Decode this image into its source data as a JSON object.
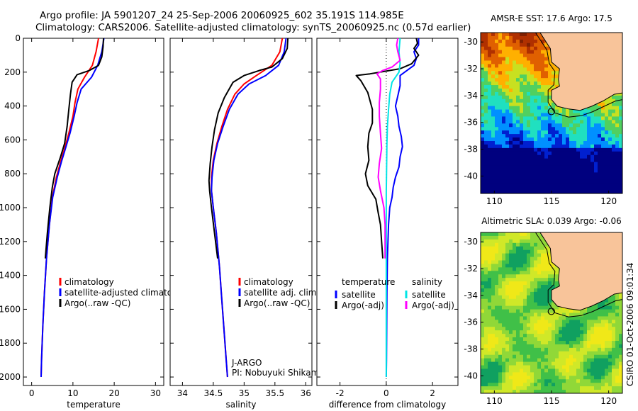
{
  "figure": {
    "title_line1": "Argo profile: JA 5901207_24 25-Sep-2006 20060925_602 35.191S 114.985E",
    "title_line2": "Climatology: CARS2006. Satellite-adjusted climatology: synTS_20060925.nc (0.57d earlier)",
    "credit": "CSIRO 01-Oct-2006 09:01:34",
    "colors": {
      "climatology": "#ff0000",
      "satellite": "#0000ff",
      "argo": "#000000",
      "sat_salinity": "#00e5e5",
      "argo_salinity": "#ff00ff",
      "land": "#f8c49a"
    }
  },
  "chart_data": [
    {
      "type": "line",
      "id": "temperature",
      "xlabel": "temperature",
      "xlim": [
        -2,
        32
      ],
      "ylim": [
        0,
        2050
      ],
      "y_reversed": true,
      "xticks": [
        0,
        10,
        20,
        30
      ],
      "yticks": [
        0,
        200,
        400,
        600,
        800,
        1000,
        1200,
        1400,
        1600,
        1800,
        2000
      ],
      "series": [
        {
          "name": "climatology",
          "color": "#ff0000",
          "points": [
            [
              16.2,
              0
            ],
            [
              15.6,
              80
            ],
            [
              14.7,
              160
            ],
            [
              12.8,
              230
            ],
            [
              11.2,
              300
            ],
            [
              10.5,
              380
            ],
            [
              10.0,
              460
            ],
            [
              9.0,
              560
            ],
            [
              8.0,
              650
            ],
            [
              7.0,
              730
            ],
            [
              6.0,
              820
            ],
            [
              5.0,
              940
            ],
            [
              4.3,
              1100
            ],
            [
              3.6,
              1300
            ],
            [
              3.1,
              1500
            ],
            [
              2.7,
              1700
            ],
            [
              2.4,
              1900
            ],
            [
              2.3,
              2000
            ]
          ]
        },
        {
          "name": "satellite-adjusted climatology",
          "color": "#0000ff",
          "points": [
            [
              17.5,
              0
            ],
            [
              17.0,
              80
            ],
            [
              16.0,
              160
            ],
            [
              14.5,
              230
            ],
            [
              12.0,
              300
            ],
            [
              11.0,
              380
            ],
            [
              10.3,
              460
            ],
            [
              9.3,
              560
            ],
            [
              8.2,
              650
            ],
            [
              7.2,
              730
            ],
            [
              6.2,
              820
            ],
            [
              5.1,
              940
            ],
            [
              4.3,
              1100
            ],
            [
              3.6,
              1300
            ],
            [
              3.1,
              1500
            ],
            [
              2.7,
              1700
            ],
            [
              2.4,
              1900
            ],
            [
              2.3,
              2000
            ]
          ]
        },
        {
          "name": "Argo(..raw -QC)",
          "color": "#000000",
          "points": [
            [
              17.4,
              0
            ],
            [
              17.3,
              50
            ],
            [
              17.0,
              110
            ],
            [
              16.2,
              160
            ],
            [
              14.0,
              190
            ],
            [
              11.0,
              215
            ],
            [
              9.8,
              260
            ],
            [
              9.4,
              330
            ],
            [
              9.0,
              420
            ],
            [
              8.6,
              520
            ],
            [
              8.0,
              620
            ],
            [
              7.0,
              700
            ],
            [
              5.6,
              800
            ],
            [
              5.0,
              880
            ],
            [
              4.4,
              1000
            ],
            [
              3.8,
              1150
            ],
            [
              3.3,
              1300
            ]
          ]
        }
      ],
      "legend": [
        "climatology",
        "satellite-adjusted climatology",
        "Argo(..raw -QC)"
      ]
    },
    {
      "type": "line",
      "id": "salinity",
      "xlabel": "salinity",
      "xlim": [
        33.8,
        36.1
      ],
      "ylim": [
        0,
        2050
      ],
      "y_reversed": true,
      "xticks": [
        34,
        34.5,
        35,
        35.5,
        36
      ],
      "series": [
        {
          "name": "climatology",
          "color": "#ff0000",
          "points": [
            [
              35.62,
              0
            ],
            [
              35.58,
              80
            ],
            [
              35.45,
              160
            ],
            [
              35.2,
              220
            ],
            [
              35.0,
              270
            ],
            [
              34.85,
              330
            ],
            [
              34.73,
              420
            ],
            [
              34.64,
              520
            ],
            [
              34.56,
              620
            ],
            [
              34.5,
              720
            ],
            [
              34.47,
              820
            ],
            [
              34.47,
              900
            ],
            [
              34.5,
              1000
            ],
            [
              34.55,
              1150
            ],
            [
              34.6,
              1350
            ],
            [
              34.64,
              1550
            ],
            [
              34.68,
              1750
            ],
            [
              34.71,
              1900
            ],
            [
              34.73,
              2000
            ]
          ]
        },
        {
          "name": "satellite adj. clim.",
          "color": "#0000ff",
          "points": [
            [
              35.68,
              0
            ],
            [
              35.65,
              80
            ],
            [
              35.56,
              160
            ],
            [
              35.35,
              220
            ],
            [
              35.08,
              270
            ],
            [
              34.9,
              330
            ],
            [
              34.76,
              420
            ],
            [
              34.66,
              520
            ],
            [
              34.57,
              620
            ],
            [
              34.51,
              720
            ],
            [
              34.48,
              820
            ],
            [
              34.47,
              900
            ],
            [
              34.5,
              1000
            ],
            [
              34.55,
              1150
            ],
            [
              34.6,
              1350
            ],
            [
              34.64,
              1550
            ],
            [
              34.68,
              1750
            ],
            [
              34.71,
              1900
            ],
            [
              34.73,
              2000
            ]
          ]
        },
        {
          "name": "Argo(..raw -QC)",
          "color": "#000000",
          "points": [
            [
              35.71,
              0
            ],
            [
              35.7,
              60
            ],
            [
              35.62,
              120
            ],
            [
              35.45,
              170
            ],
            [
              35.25,
              190
            ],
            [
              35.0,
              220
            ],
            [
              34.82,
              260
            ],
            [
              34.68,
              350
            ],
            [
              34.58,
              440
            ],
            [
              34.52,
              540
            ],
            [
              34.48,
              640
            ],
            [
              34.45,
              740
            ],
            [
              34.43,
              840
            ],
            [
              34.44,
              900
            ],
            [
              34.47,
              1000
            ],
            [
              34.52,
              1150
            ],
            [
              34.57,
              1300
            ]
          ]
        }
      ],
      "legend": [
        "climatology",
        "satellite adj. clim.",
        "Argo(..raw -QC)"
      ],
      "annotation_lines": [
        "J-ARGO",
        "PI: Nobuyuki Shikama"
      ]
    },
    {
      "type": "line",
      "id": "difference",
      "xlabel": "difference from climatology",
      "xlim": [
        -3,
        3.1
      ],
      "ylim": [
        0,
        2050
      ],
      "y_reversed": true,
      "xticks": [
        -2,
        0,
        2
      ],
      "zero_line": "dotted",
      "series": [
        {
          "name": "temperature satellite",
          "color": "#0000ff",
          "points": [
            [
              1.4,
              0
            ],
            [
              1.4,
              40
            ],
            [
              1.2,
              80
            ],
            [
              1.3,
              120
            ],
            [
              1.2,
              160
            ],
            [
              0.6,
              220
            ],
            [
              0.6,
              280
            ],
            [
              0.5,
              340
            ],
            [
              0.4,
              400
            ],
            [
              0.5,
              460
            ],
            [
              0.55,
              520
            ],
            [
              0.65,
              580
            ],
            [
              0.7,
              640
            ],
            [
              0.6,
              700
            ],
            [
              0.55,
              760
            ],
            [
              0.4,
              820
            ],
            [
              0.3,
              880
            ],
            [
              0.25,
              940
            ],
            [
              0.15,
              1000
            ],
            [
              0.1,
              1100
            ],
            [
              0.05,
              1300
            ],
            [
              0.03,
              1500
            ],
            [
              0.02,
              1700
            ],
            [
              0.01,
              1900
            ],
            [
              0,
              2000
            ]
          ]
        },
        {
          "name": "temperature Argo(-adj)",
          "color": "#000000",
          "points": [
            [
              1.3,
              0
            ],
            [
              1.35,
              30
            ],
            [
              1.2,
              60
            ],
            [
              1.4,
              100
            ],
            [
              1.1,
              150
            ],
            [
              0.6,
              180
            ],
            [
              -0.7,
              210
            ],
            [
              -1.3,
              220
            ],
            [
              -1.1,
              250
            ],
            [
              -0.8,
              320
            ],
            [
              -0.6,
              420
            ],
            [
              -0.6,
              500
            ],
            [
              -0.75,
              560
            ],
            [
              -0.8,
              640
            ],
            [
              -0.75,
              720
            ],
            [
              -0.9,
              800
            ],
            [
              -0.8,
              870
            ],
            [
              -0.45,
              950
            ],
            [
              -0.35,
              1030
            ],
            [
              -0.25,
              1100
            ],
            [
              -0.2,
              1200
            ],
            [
              -0.15,
              1300
            ]
          ]
        },
        {
          "name": "salinity satellite",
          "color": "#00e5e5",
          "points": [
            [
              0.6,
              0
            ],
            [
              0.55,
              80
            ],
            [
              0.6,
              150
            ],
            [
              0.55,
              200
            ],
            [
              0.25,
              260
            ],
            [
              0.15,
              330
            ],
            [
              0.1,
              420
            ],
            [
              0.05,
              520
            ],
            [
              0.03,
              620
            ],
            [
              0.02,
              720
            ],
            [
              0.01,
              820
            ],
            [
              0,
              900
            ],
            [
              0,
              1000
            ],
            [
              0,
              1100
            ],
            [
              0,
              1300
            ],
            [
              0,
              1500
            ],
            [
              0,
              1700
            ],
            [
              0,
              1900
            ],
            [
              0,
              2000
            ]
          ]
        },
        {
          "name": "salinity Argo(-adj)",
          "color": "#ff00ff",
          "points": [
            [
              0.5,
              0
            ],
            [
              0.45,
              40
            ],
            [
              0.5,
              80
            ],
            [
              0.6,
              130
            ],
            [
              0.25,
              170
            ],
            [
              -0.15,
              190
            ],
            [
              -0.4,
              210
            ],
            [
              -0.25,
              240
            ],
            [
              -0.25,
              300
            ],
            [
              -0.3,
              380
            ],
            [
              -0.3,
              460
            ],
            [
              -0.25,
              560
            ],
            [
              -0.2,
              650
            ],
            [
              -0.3,
              740
            ],
            [
              -0.35,
              820
            ],
            [
              -0.25,
              900
            ],
            [
              -0.1,
              1000
            ],
            [
              -0.05,
              1100
            ],
            [
              -0.05,
              1200
            ],
            [
              -0.05,
              1300
            ]
          ]
        }
      ],
      "legend_groups": [
        {
          "heading": "temperature",
          "entries": [
            "satellite",
            "Argo(-adj)"
          ],
          "colors": [
            "#0000ff",
            "#000000"
          ]
        },
        {
          "heading": "salinity",
          "entries": [
            "satellite",
            "Argo(-adj)"
          ],
          "colors": [
            "#00e5e5",
            "#ff00ff"
          ]
        }
      ]
    },
    {
      "type": "heatmap",
      "id": "sst_map",
      "title": "AMSR-E SST: 17.6 Argo: 17.5",
      "xlim": [
        108.8,
        121.2
      ],
      "ylim": [
        -41.3,
        -29.3
      ],
      "xticks": [
        110,
        115,
        120
      ],
      "yticks": [
        -30,
        -32,
        -34,
        -36,
        -38,
        -40
      ],
      "marker": [
        114.985,
        -35.191
      ],
      "colormap": [
        "#00007f",
        "#0020d0",
        "#0090ff",
        "#20e0c0",
        "#50d060",
        "#c8e020",
        "#ffb000",
        "#e06000",
        "#b03000",
        "#802000"
      ]
    },
    {
      "type": "heatmap",
      "id": "sla_map",
      "title": "Altimetric SLA: 0.039 Argo: -0.06",
      "xlim": [
        108.8,
        121.2
      ],
      "ylim": [
        -41.3,
        -29.3
      ],
      "xticks": [
        110,
        115,
        120
      ],
      "yticks": [
        -30,
        -32,
        -34,
        -36,
        -38,
        -40
      ],
      "marker": [
        114.985,
        -35.191
      ],
      "colormap": [
        "#10a060",
        "#40c048",
        "#90d838",
        "#d0e828",
        "#f0e818"
      ]
    }
  ]
}
